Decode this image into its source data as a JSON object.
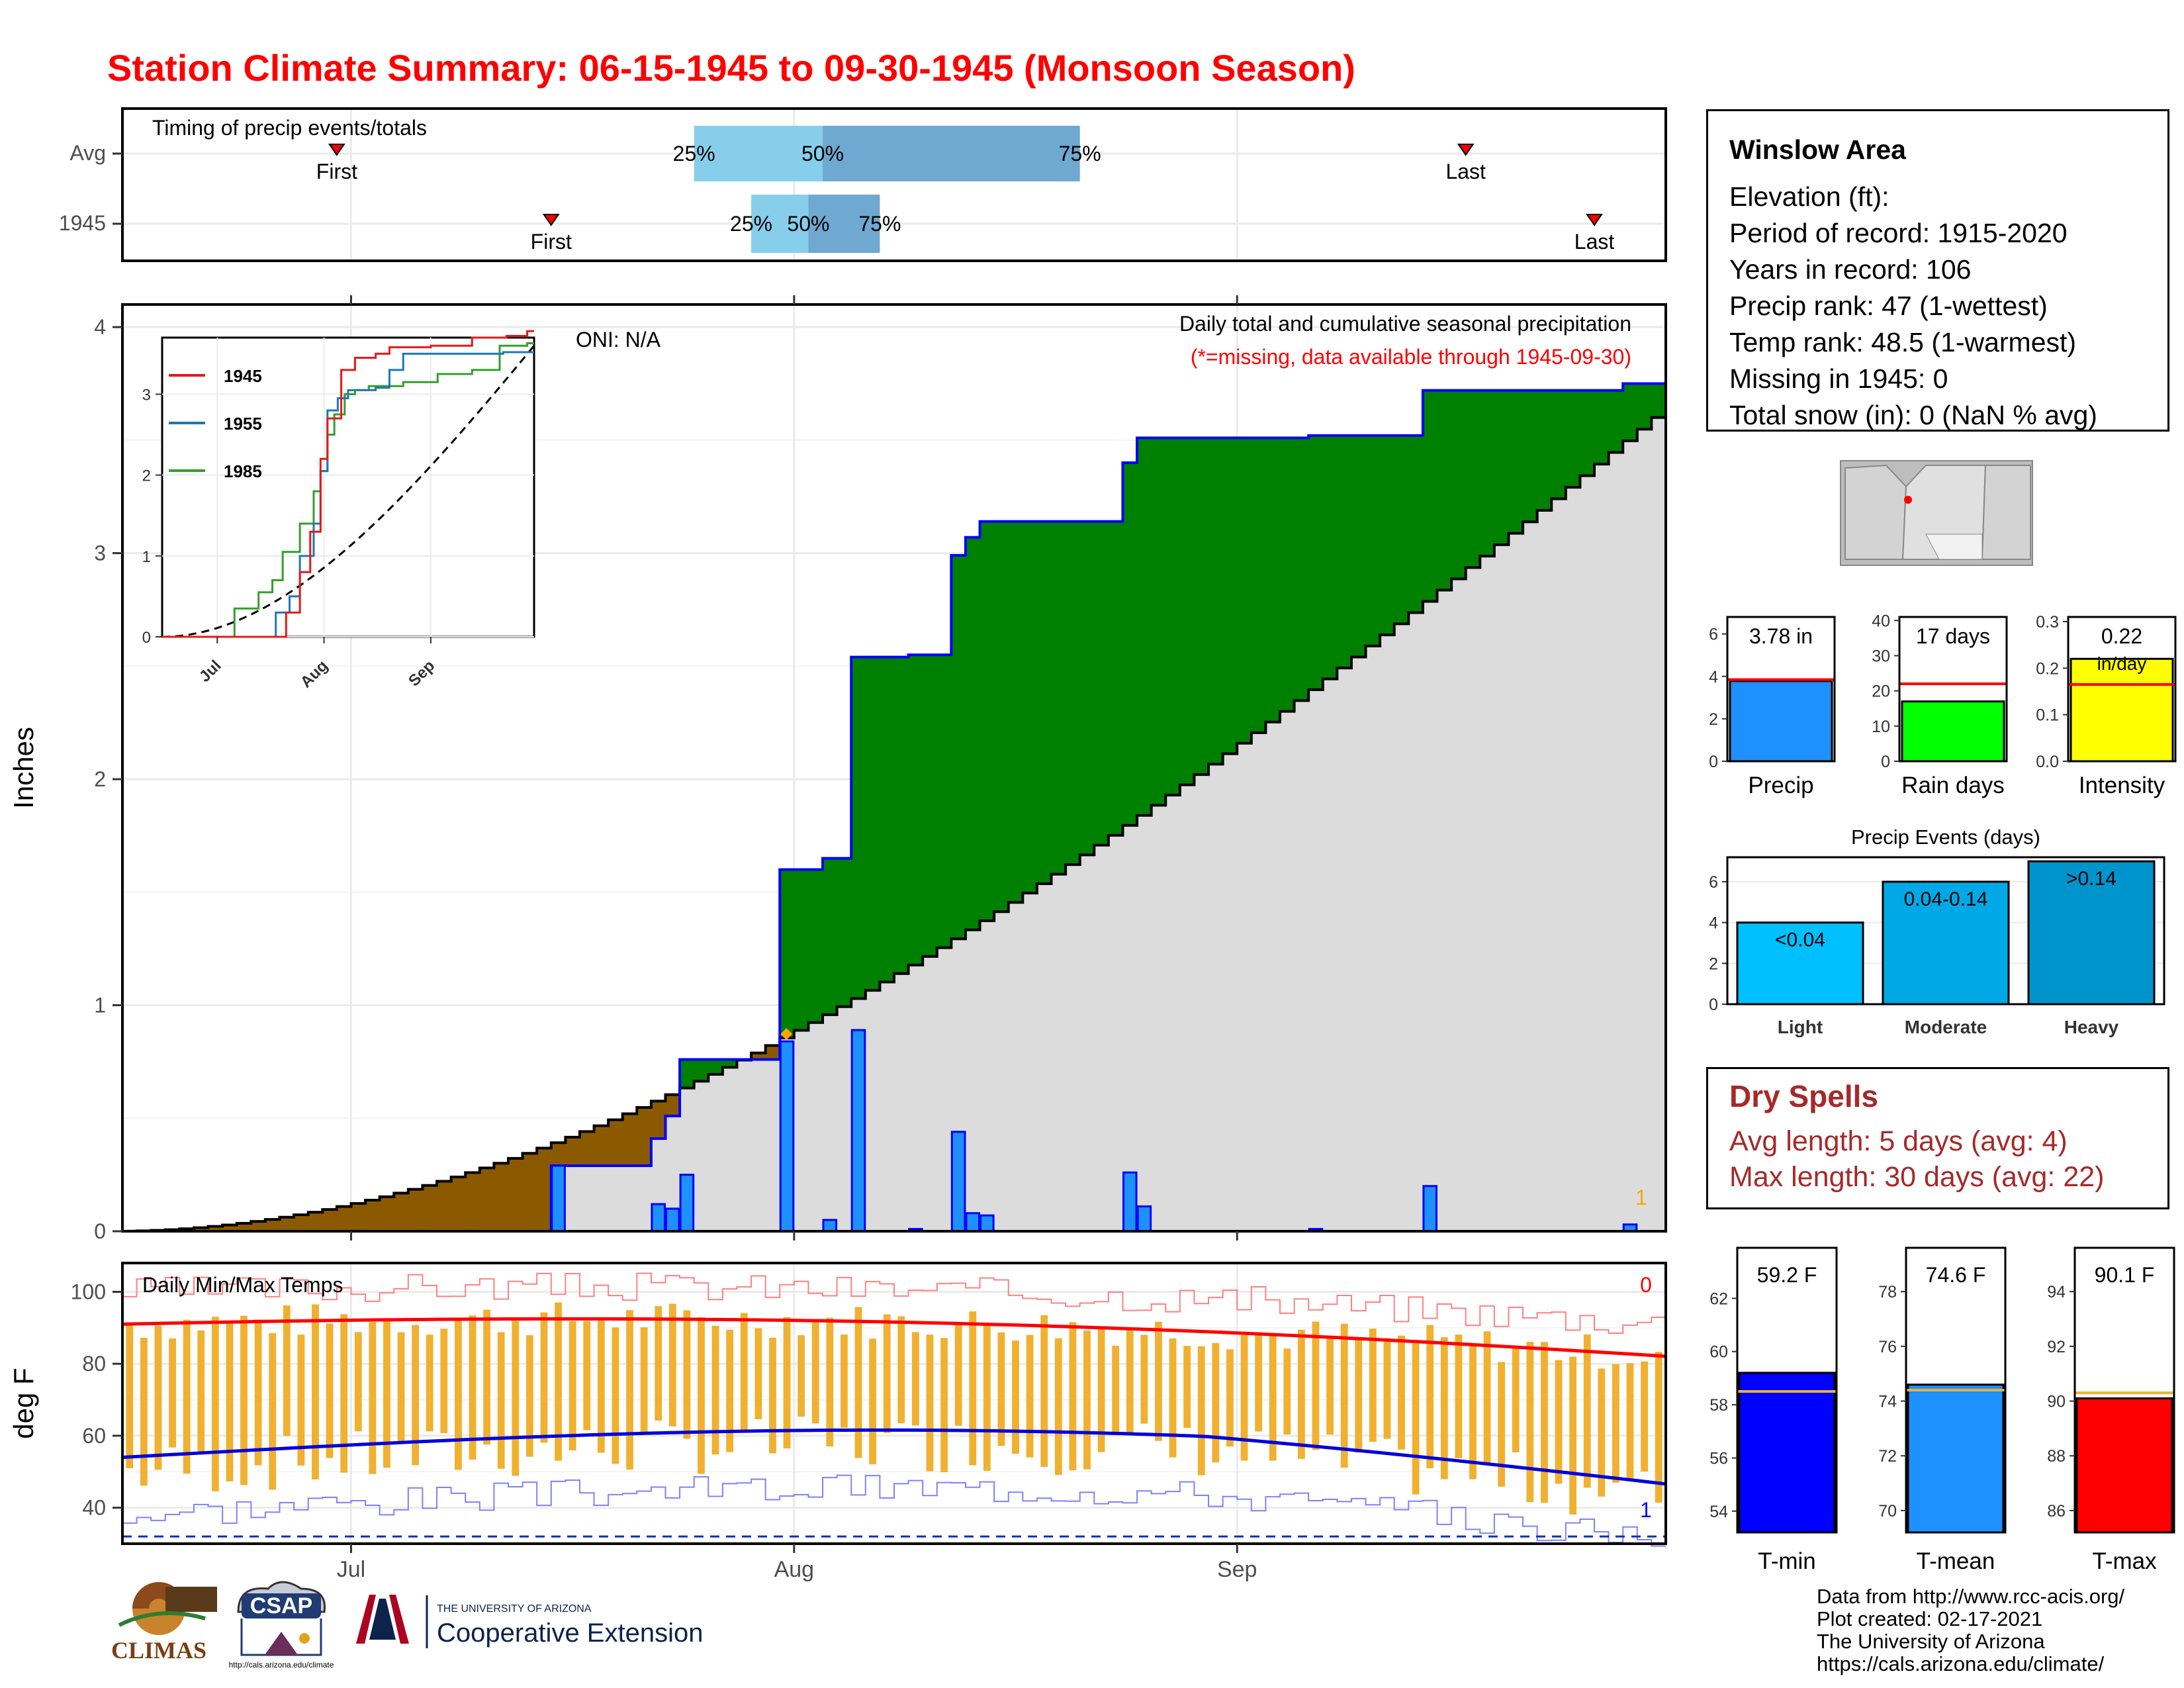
{
  "title": "Station Climate Summary: 06-15-1945 to 09-30-1945 (Monsoon Season)",
  "timing_panel": {
    "label": "Timing of precip events/totals",
    "row_labels": [
      "Avg",
      "1945"
    ],
    "first_label": "First",
    "last_label": "Last",
    "avg": {
      "first": "2021-06-30",
      "last": "2021-09-17",
      "p25": "2021-07-25",
      "p50": "2021-08-03",
      "p75": "2021-08-21"
    },
    "y1945": {
      "first": "2021-07-15",
      "last": "2021-09-26",
      "p25": "2021-07-29",
      "p50": "2021-08-02",
      "p75": "2021-08-07"
    },
    "pct_labels": [
      "25%",
      "50%",
      "75%"
    ]
  },
  "main_panel": {
    "ylabel": "Inches",
    "oni_label": "ONI: N/A",
    "caption": "Daily total and cumulative seasonal precipitation",
    "missing_note": "(*=missing, data available through 1945-09-30)",
    "missing_count": "1",
    "x_ticks": [
      "Jul",
      "Aug",
      "Sep"
    ],
    "y_ticks": [
      "0",
      "1",
      "2",
      "3",
      "4"
    ]
  },
  "inset": {
    "legend": [
      "1945",
      "1955",
      "1985"
    ],
    "x_ticks": [
      "Jul",
      "Aug",
      "Sep"
    ],
    "y_ticks": [
      "0",
      "1",
      "2",
      "3"
    ]
  },
  "temp_panel": {
    "label": "Daily Min/Max Temps",
    "ylabel": "deg F",
    "y_ticks": [
      "40",
      "60",
      "80",
      "100"
    ],
    "x_ticks": [
      "Jul",
      "Aug",
      "Sep"
    ],
    "top_count": "0",
    "bottom_count": "1"
  },
  "station": {
    "name": "Winslow Area",
    "lines": [
      "Elevation (ft):",
      "Period of record: 1915-2020",
      "Years in record: 106",
      "Precip rank: 47 (1-wettest)",
      "Temp rank: 48.5 (1-warmest)",
      "Missing in 1945: 0",
      "Total snow (in): 0 (NaN % avg)"
    ]
  },
  "mini_bars": {
    "precip": {
      "label": "Precip",
      "value_label": "3.78 in",
      "value": 3.78,
      "avg": 3.85,
      "ymax": 6.8,
      "ticks": [
        "0",
        "2",
        "4",
        "6"
      ],
      "color": "#1e90ff"
    },
    "rain_days": {
      "label": "Rain days",
      "value_label": "17 days",
      "value": 17,
      "avg": 22,
      "ymax": 41,
      "ticks": [
        "0",
        "10",
        "20",
        "30",
        "40"
      ],
      "color": "#00ff00"
    },
    "intensity": {
      "label": "Intensity",
      "value_label": "0.22",
      "unit_label": "in/day",
      "value": 0.22,
      "avg": 0.165,
      "ymax": 0.31,
      "ticks": [
        "0.0",
        "0.1",
        "0.2",
        "0.3"
      ],
      "color": "#ffff00"
    }
  },
  "precip_events": {
    "title": "Precip Events (days)",
    "categories": [
      "Light",
      "Moderate",
      "Heavy"
    ],
    "range_labels": [
      "<0.04",
      "0.04-0.14",
      ">0.14"
    ],
    "values": [
      4,
      6,
      7
    ],
    "colors": [
      "#00bfff",
      "#00a9e6",
      "#0094cc"
    ],
    "y_ticks": [
      "0",
      "2",
      "4",
      "6"
    ],
    "ymax": 7.2
  },
  "dry_spells": {
    "title": "Dry Spells",
    "avg_line": "Avg length: 5 days (avg: 4)",
    "max_line": "Max length: 30 days (avg: 22)"
  },
  "temp_bars": {
    "tmin": {
      "label": "T-min",
      "value_label": "59.2 F",
      "value": 59.2,
      "avg": 58.5,
      "ymin": 53.2,
      "ymax": 63.9,
      "ticks": [
        "54",
        "56",
        "58",
        "60",
        "62"
      ],
      "color": "#0000ff"
    },
    "tmean": {
      "label": "T-mean",
      "value_label": "74.6 F",
      "value": 74.6,
      "avg": 74.4,
      "ymin": 69.2,
      "ymax": 79.6,
      "ticks": [
        "70",
        "72",
        "74",
        "76",
        "78"
      ],
      "color": "#1e90ff"
    },
    "tmax": {
      "label": "T-max",
      "value_label": "90.1 F",
      "value": 90.1,
      "avg": 90.3,
      "ymin": 85.2,
      "ymax": 95.6,
      "ticks": [
        "86",
        "88",
        "90",
        "92",
        "94"
      ],
      "color": "#ff0000"
    }
  },
  "credits": [
    "Data from http://www.rcc-acis.org/",
    "Plot created: 02-17-2021",
    "The University of Arizona",
    "https://cals.arizona.edu/climate/"
  ],
  "logos": {
    "climas": "CLIMAS",
    "csap": "CSAP",
    "csap_url": "http://cals.arizona.edu/climate",
    "ua_small": "THE UNIVERSITY OF ARIZONA",
    "ua_big": "Cooperative Extension"
  },
  "chart_data": [
    {
      "type": "area",
      "title": "Daily total and cumulative seasonal precipitation",
      "ylabel": "Inches",
      "xlim": [
        "1945-06-15",
        "1945-09-30"
      ],
      "ylim": [
        0,
        4.1
      ],
      "daily_precip": [
        {
          "date": "1945-07-15",
          "value": 0.29
        },
        {
          "date": "1945-07-22",
          "value": 0.12
        },
        {
          "date": "1945-07-23",
          "value": 0.1
        },
        {
          "date": "1945-07-24",
          "value": 0.25
        },
        {
          "date": "1945-07-31",
          "value": 0.84
        },
        {
          "date": "1945-08-03",
          "value": 0.05
        },
        {
          "date": "1945-08-05",
          "value": 0.89
        },
        {
          "date": "1945-08-09",
          "value": 0.01
        },
        {
          "date": "1945-08-12",
          "value": 0.44
        },
        {
          "date": "1945-08-13",
          "value": 0.08
        },
        {
          "date": "1945-08-14",
          "value": 0.07
        },
        {
          "date": "1945-08-24",
          "value": 0.26
        },
        {
          "date": "1945-08-25",
          "value": 0.11
        },
        {
          "date": "1945-09-06",
          "value": 0.01
        },
        {
          "date": "1945-09-14",
          "value": 0.2
        },
        {
          "date": "1945-09-28",
          "value": 0.03
        }
      ],
      "cumulative_1945_total": 3.78,
      "cumulative_avg_endpoints": [
        {
          "date": "1945-06-15",
          "value": 0.0
        },
        {
          "date": "1945-09-30",
          "value": 3.6
        }
      ]
    },
    {
      "type": "line",
      "title": "",
      "series": [
        {
          "name": "1945"
        },
        {
          "name": "1955"
        },
        {
          "name": "1985"
        }
      ],
      "ylim": [
        0,
        3.7
      ]
    },
    {
      "type": "bar",
      "title": "Daily Min/Max Temps",
      "ylabel": "deg F",
      "ylim": [
        30,
        108
      ],
      "tmax_start": 91,
      "tmax_end": 81,
      "tmin_start": 54,
      "tmin_end": 47,
      "freeze_line": 32
    }
  ]
}
